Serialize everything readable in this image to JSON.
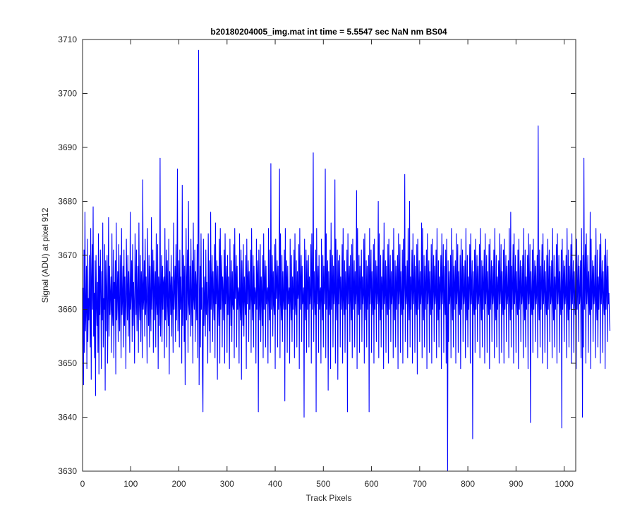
{
  "chart_data": {
    "type": "line",
    "title": "b20180204005_img.mat int time = 5.5547 sec  NaN nm BS04",
    "xlabel": "Track Pixels",
    "ylabel": "Signal (ADU) at pixel 912",
    "xlim": [
      0,
      1024
    ],
    "ylim": [
      3630,
      3710
    ],
    "xticks": [
      0,
      100,
      200,
      300,
      400,
      500,
      600,
      700,
      800,
      900,
      1000
    ],
    "yticks": [
      3630,
      3640,
      3650,
      3660,
      3670,
      3680,
      3690,
      3700,
      3710
    ],
    "grid": false,
    "legend": "none",
    "series": [
      {
        "color": "#0000ff",
        "x_start": 1,
        "x_step": 1,
        "values": [
          3664,
          3646,
          3671,
          3652,
          3678,
          3656,
          3660,
          3668,
          3649,
          3673,
          3654,
          3662,
          3658,
          3670,
          3659,
          3653,
          3675,
          3647,
          3666,
          3672,
          3660,
          3679,
          3655,
          3663,
          3651,
          3669,
          3644,
          3670,
          3661,
          3657,
          3665,
          3652,
          3674,
          3648,
          3668,
          3659,
          3671,
          3663,
          3649,
          3667,
          3658,
          3676,
          3653,
          3662,
          3660,
          3672,
          3645,
          3669,
          3656,
          3664,
          3670,
          3650,
          3661,
          3677,
          3655,
          3668,
          3659,
          3663,
          3666,
          3652,
          3674,
          3660,
          3657,
          3671,
          3651,
          3665,
          3662,
          3669,
          3648,
          3676,
          3658,
          3663,
          3667,
          3654,
          3672,
          3660,
          3656,
          3670,
          3664,
          3651,
          3675,
          3659,
          3662,
          3668,
          3653,
          3671,
          3657,
          3666,
          3661,
          3649,
          3673,
          3664,
          3658,
          3670,
          3655,
          3667,
          3662,
          3652,
          3678,
          3660,
          3663,
          3669,
          3654,
          3672,
          3657,
          3665,
          3661,
          3650,
          3674,
          3666,
          3659,
          3671,
          3656,
          3663,
          3668,
          3652,
          3676,
          3661,
          3658,
          3670,
          3654,
          3667,
          3664,
          3651,
          3684,
          3660,
          3662,
          3669,
          3655,
          3673,
          3659,
          3666,
          3661,
          3650,
          3675,
          3663,
          3657,
          3670,
          3653,
          3668,
          3662,
          3656,
          3677,
          3660,
          3665,
          3671,
          3652,
          3669,
          3658,
          3664,
          3667,
          3653,
          3674,
          3661,
          3659,
          3672,
          3649,
          3666,
          3663,
          3657,
          3688,
          3655,
          3662,
          3670,
          3654,
          3668,
          3660,
          3665,
          3666,
          3651,
          3675,
          3658,
          3663,
          3671,
          3653,
          3669,
          3661,
          3657,
          3673,
          3648,
          3667,
          3664,
          3659,
          3670,
          3655,
          3666,
          3662,
          3652,
          3676,
          3660,
          3664,
          3668,
          3654,
          3672,
          3658,
          3665,
          3686,
          3656,
          3663,
          3669,
          3653,
          3671,
          3660,
          3666,
          3661,
          3650,
          3683,
          3657,
          3664,
          3670,
          3654,
          3668,
          3646,
          3662,
          3675,
          3658,
          3665,
          3671,
          3652,
          3680,
          3661,
          3659,
          3668,
          3655,
          3673,
          3663,
          3657,
          3669,
          3650,
          3676,
          3662,
          3660,
          3671,
          3654,
          3667,
          3664,
          3658,
          3672,
          3651,
          3677,
          3708,
          3646,
          3661,
          3668,
          3653,
          3674,
          3660,
          3664,
          3648,
          3641,
          3673,
          3657,
          3662,
          3666,
          3655,
          3671,
          3659,
          3665,
          3661,
          3650,
          3674,
          3663,
          3656,
          3669,
          3652,
          3678,
          3660,
          3664,
          3670,
          3654,
          3667,
          3662,
          3658,
          3672,
          3651,
          3676,
          3661,
          3664,
          3669,
          3647,
          3668,
          3662,
          3657,
          3673,
          3650,
          3675,
          3660,
          3665,
          3670,
          3653,
          3666,
          3663,
          3658,
          3671,
          3650,
          3674,
          3661,
          3664,
          3668,
          3652,
          3670,
          3659,
          3666,
          3662,
          3649,
          3673,
          3663,
          3657,
          3669,
          3654,
          3667,
          3661,
          3660,
          3672,
          3651,
          3675,
          3662,
          3665,
          3670,
          3653,
          3668,
          3660,
          3664,
          3663,
          3650,
          3674,
          3661,
          3658,
          3671,
          3647,
          3669,
          3663,
          3657,
          3672,
          3655,
          3666,
          3662,
          3659,
          3670,
          3649,
          3673,
          3661,
          3665,
          3669,
          3654,
          3667,
          3660,
          3663,
          3671,
          3652,
          3675,
          3662,
          3658,
          3670,
          3653,
          3668,
          3661,
          3664,
          3663,
          3650,
          3673,
          3660,
          3666,
          3669,
          3641,
          3671,
          3662,
          3658,
          3672,
          3654,
          3666,
          3663,
          3657,
          3670,
          3651,
          3674,
          3660,
          3665,
          3669,
          3653,
          3668,
          3661,
          3663,
          3664,
          3650,
          3675,
          3662,
          3658,
          3671,
          3652,
          3687,
          3660,
          3664,
          3670,
          3655,
          3667,
          3661,
          3659,
          3672,
          3649,
          3673,
          3662,
          3665,
          3669,
          3653,
          3668,
          3660,
          3663,
          3686,
          3651,
          3674,
          3661,
          3658,
          3670,
          3654,
          3667,
          3662,
          3660,
          3671,
          3643,
          3675,
          3660,
          3665,
          3669,
          3652,
          3668,
          3661,
          3663,
          3664,
          3650,
          3673,
          3662,
          3658,
          3670,
          3654,
          3666,
          3660,
          3664,
          3671,
          3651,
          3674,
          3661,
          3659,
          3669,
          3653,
          3667,
          3662,
          3663,
          3672,
          3649,
          3675,
          3660,
          3665,
          3670,
          3654,
          3668,
          3661,
          3662,
          3664,
          3640,
          3673,
          3662,
          3658,
          3671,
          3652,
          3669,
          3660,
          3665,
          3670,
          3653,
          3666,
          3661,
          3663,
          3672,
          3650,
          3674,
          3660,
          3664,
          3689,
          3654,
          3667,
          3662,
          3659,
          3671,
          3641,
          3675,
          3661,
          3665,
          3668,
          3652,
          3670,
          3660,
          3663,
          3664,
          3650,
          3673,
          3662,
          3658,
          3670,
          3653,
          3668,
          3661,
          3664,
          3686,
          3651,
          3674,
          3660,
          3666,
          3669,
          3645,
          3667,
          3662,
          3659,
          3671,
          3649,
          3676,
          3660,
          3664,
          3670,
          3653,
          3668,
          3661,
          3663,
          3684,
          3650,
          3673,
          3662,
          3658,
          3671,
          3647,
          3669,
          3661,
          3665,
          3670,
          3653,
          3666,
          3660,
          3663,
          3672,
          3650,
          3675,
          3662,
          3659,
          3669,
          3652,
          3667,
          3660,
          3664,
          3671,
          3641,
          3674,
          3661,
          3665,
          3668,
          3654,
          3670,
          3662,
          3658,
          3672,
          3651,
          3673,
          3660,
          3664,
          3669,
          3653,
          3667,
          3661,
          3663,
          3682,
          3649,
          3675,
          3662,
          3659,
          3670,
          3652,
          3668,
          3660,
          3665,
          3671,
          3654,
          3666,
          3661,
          3663,
          3673,
          3650,
          3674,
          3662,
          3658,
          3669,
          3653,
          3668,
          3660,
          3664,
          3670,
          3641,
          3675,
          3661,
          3665,
          3671,
          3652,
          3667,
          3662,
          3659,
          3672,
          3650,
          3673,
          3660,
          3664,
          3669,
          3654,
          3668,
          3661,
          3663,
          3680,
          3651,
          3674,
          3662,
          3658,
          3670,
          3653,
          3666,
          3660,
          3665,
          3671,
          3649,
          3676,
          3661,
          3663,
          3669,
          3652,
          3668,
          3662,
          3659,
          3672,
          3650,
          3673,
          3660,
          3664,
          3670,
          3654,
          3667,
          3661,
          3663,
          3671,
          3651,
          3675,
          3662,
          3658,
          3669,
          3653,
          3668,
          3660,
          3665,
          3670,
          3649,
          3674,
          3661,
          3664,
          3672,
          3652,
          3667,
          3662,
          3659,
          3671,
          3650,
          3673,
          3660,
          3664,
          3685,
          3654,
          3668,
          3661,
          3663,
          3669,
          3651,
          3675,
          3662,
          3658,
          3680,
          3653,
          3666,
          3660,
          3665,
          3671,
          3650,
          3674,
          3661,
          3664,
          3670,
          3652,
          3668,
          3662,
          3659,
          3672,
          3648,
          3673,
          3660,
          3664,
          3669,
          3654,
          3667,
          3661,
          3663,
          3676,
          3651,
          3675,
          3662,
          3658,
          3670,
          3653,
          3668,
          3660,
          3665,
          3671,
          3649,
          3674,
          3661,
          3664,
          3669,
          3652,
          3667,
          3662,
          3659,
          3672,
          3650,
          3673,
          3660,
          3664,
          3670,
          3654,
          3668,
          3661,
          3663,
          3671,
          3651,
          3675,
          3662,
          3658,
          3669,
          3653,
          3666,
          3660,
          3665,
          3670,
          3649,
          3674,
          3661,
          3664,
          3672,
          3652,
          3668,
          3662,
          3659,
          3671,
          3650,
          3673,
          3660,
          3630,
          3669,
          3654,
          3667,
          3661,
          3663,
          3670,
          3651,
          3675,
          3662,
          3658,
          3671,
          3653,
          3668,
          3660,
          3665,
          3669,
          3650,
          3674,
          3661,
          3664,
          3672,
          3652,
          3667,
          3662,
          3659,
          3670,
          3649,
          3673,
          3660,
          3664,
          3671,
          3654,
          3668,
          3661,
          3663,
          3669,
          3651,
          3675,
          3662,
          3658,
          3670,
          3653,
          3666,
          3660,
          3665,
          3672,
          3650,
          3674,
          3661,
          3664,
          3669,
          3636,
          3667,
          3662,
          3659,
          3671,
          3652,
          3673,
          3660,
          3664,
          3670,
          3654,
          3668,
          3661,
          3663,
          3672,
          3651,
          3675,
          3662,
          3658,
          3669,
          3653,
          3668,
          3660,
          3665,
          3671,
          3650,
          3674,
          3661,
          3664,
          3670,
          3652,
          3667,
          3662,
          3659,
          3672,
          3649,
          3673,
          3660,
          3664,
          3669,
          3654,
          3668,
          3661,
          3663,
          3671,
          3651,
          3675,
          3662,
          3658,
          3670,
          3653,
          3666,
          3660,
          3665,
          3669,
          3650,
          3674,
          3661,
          3664,
          3672,
          3652,
          3667,
          3662,
          3659,
          3671,
          3650,
          3673,
          3660,
          3664,
          3670,
          3654,
          3668,
          3661,
          3663,
          3669,
          3651,
          3675,
          3662,
          3658,
          3678,
          3653,
          3668,
          3660,
          3665,
          3672,
          3650,
          3674,
          3661,
          3664,
          3670,
          3652,
          3667,
          3662,
          3659,
          3671,
          3649,
          3673,
          3660,
          3664,
          3669,
          3654,
          3668,
          3661,
          3663,
          3670,
          3651,
          3675,
          3662,
          3658,
          3671,
          3653,
          3666,
          3660,
          3665,
          3670,
          3649,
          3674,
          3661,
          3664,
          3672,
          3639,
          3667,
          3662,
          3659,
          3671,
          3652,
          3673,
          3660,
          3664,
          3669,
          3654,
          3668,
          3661,
          3663,
          3670,
          3651,
          3694,
          3662,
          3658,
          3671,
          3653,
          3668,
          3660,
          3665,
          3672,
          3650,
          3674,
          3661,
          3664,
          3669,
          3652,
          3667,
          3662,
          3659,
          3670,
          3649,
          3673,
          3660,
          3664,
          3671,
          3654,
          3668,
          3661,
          3663,
          3669,
          3651,
          3675,
          3662,
          3658,
          3670,
          3653,
          3666,
          3660,
          3665,
          3672,
          3650,
          3674,
          3661,
          3664,
          3670,
          3652,
          3667,
          3662,
          3659,
          3671,
          3638,
          3673,
          3660,
          3664,
          3669,
          3654,
          3668,
          3661,
          3663,
          3670,
          3651,
          3675,
          3662,
          3658,
          3671,
          3653,
          3668,
          3660,
          3665,
          3672,
          3650,
          3674,
          3661,
          3664,
          3669,
          3652,
          3667,
          3662,
          3659,
          3671,
          3649,
          3673,
          3660,
          3664,
          3670,
          3654,
          3668,
          3661,
          3663,
          3669,
          3651,
          3675,
          3662,
          3640,
          3670,
          3653,
          3688,
          3660,
          3665,
          3672,
          3650,
          3674,
          3661,
          3664,
          3670,
          3652,
          3667,
          3662,
          3659,
          3678,
          3649,
          3673,
          3660,
          3664,
          3669,
          3654,
          3668,
          3661,
          3663,
          3670,
          3651,
          3675,
          3662,
          3658,
          3671,
          3653,
          3666,
          3660,
          3665,
          3672,
          3650,
          3674,
          3661,
          3664,
          3669,
          3652,
          3667,
          3662,
          3659,
          3670,
          3649,
          3673,
          3660,
          3664,
          3671,
          3654,
          3668,
          3661,
          3663,
          3658,
          3656
        ]
      }
    ]
  }
}
